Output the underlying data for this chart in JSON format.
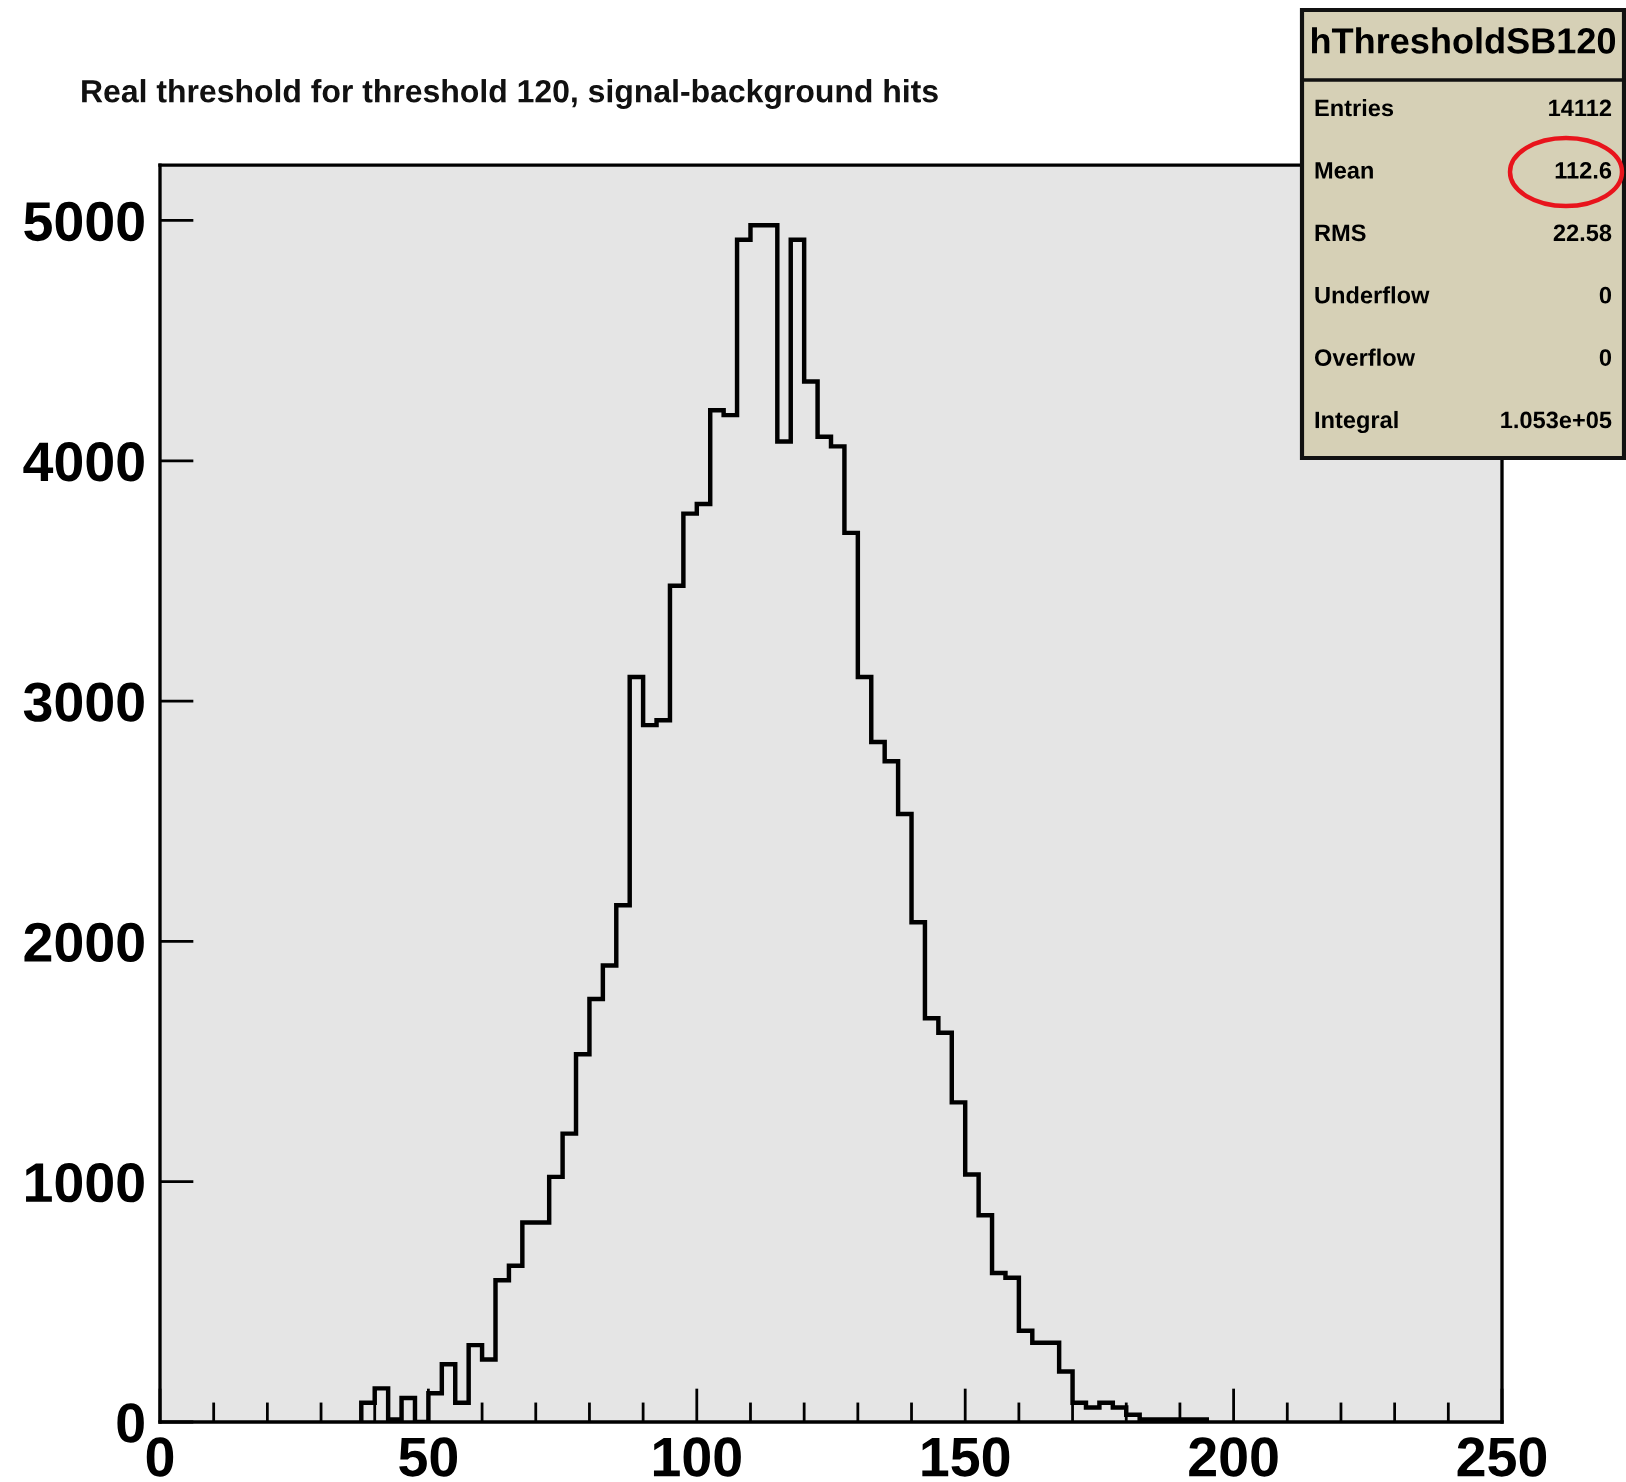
{
  "chart_data": {
    "type": "histogram",
    "title": "Real threshold for threshold 120, signal-background hits",
    "bins": [
      37.5,
      40,
      42.5,
      45,
      47.5,
      50,
      52.5,
      55,
      57.5,
      60,
      62.5,
      65,
      67.5,
      70,
      72.5,
      75,
      77.5,
      80,
      82.5,
      85,
      87.5,
      90,
      92.5,
      95,
      97.5,
      100,
      102.5,
      105,
      107.5,
      110,
      112.5,
      115,
      117.5,
      120,
      122.5,
      125,
      127.5,
      130,
      132.5,
      135,
      137.5,
      140,
      142.5,
      145,
      147.5,
      150,
      152.5,
      155,
      157.5,
      160,
      162.5,
      165,
      167.5,
      170,
      172.5,
      175,
      177.5,
      180,
      182.5,
      185,
      187.5,
      190,
      192.5,
      195
    ],
    "values": [
      80,
      140,
      10,
      100,
      0,
      120,
      240,
      80,
      320,
      260,
      590,
      650,
      830,
      830,
      1020,
      1200,
      1530,
      1760,
      1900,
      2150,
      3100,
      2900,
      2920,
      3480,
      3780,
      3820,
      4210,
      4190,
      4920,
      4980,
      4980,
      4080,
      4920,
      4330,
      4100,
      4060,
      3700,
      3100,
      2830,
      2750,
      2530,
      2080,
      1680,
      1620,
      1330,
      1030,
      860,
      620,
      600,
      380,
      330,
      330,
      210,
      80,
      60,
      80,
      60,
      30,
      10,
      10,
      10,
      10,
      10
    ],
    "color": "#000000",
    "xlim": [
      0,
      250
    ],
    "ylim": [
      0,
      5230
    ],
    "xticks": [
      0,
      50,
      100,
      150,
      200,
      250
    ],
    "yticks": [
      0,
      1000,
      2000,
      3000,
      4000,
      5000
    ],
    "annotations": [
      "hThresholdSB120",
      "Entries",
      "14112",
      "Mean",
      "112.6",
      "RMS",
      "22.58",
      "Underflow",
      "0",
      "Overflow",
      "0",
      "Integral",
      "1.053e+05"
    ]
  }
}
